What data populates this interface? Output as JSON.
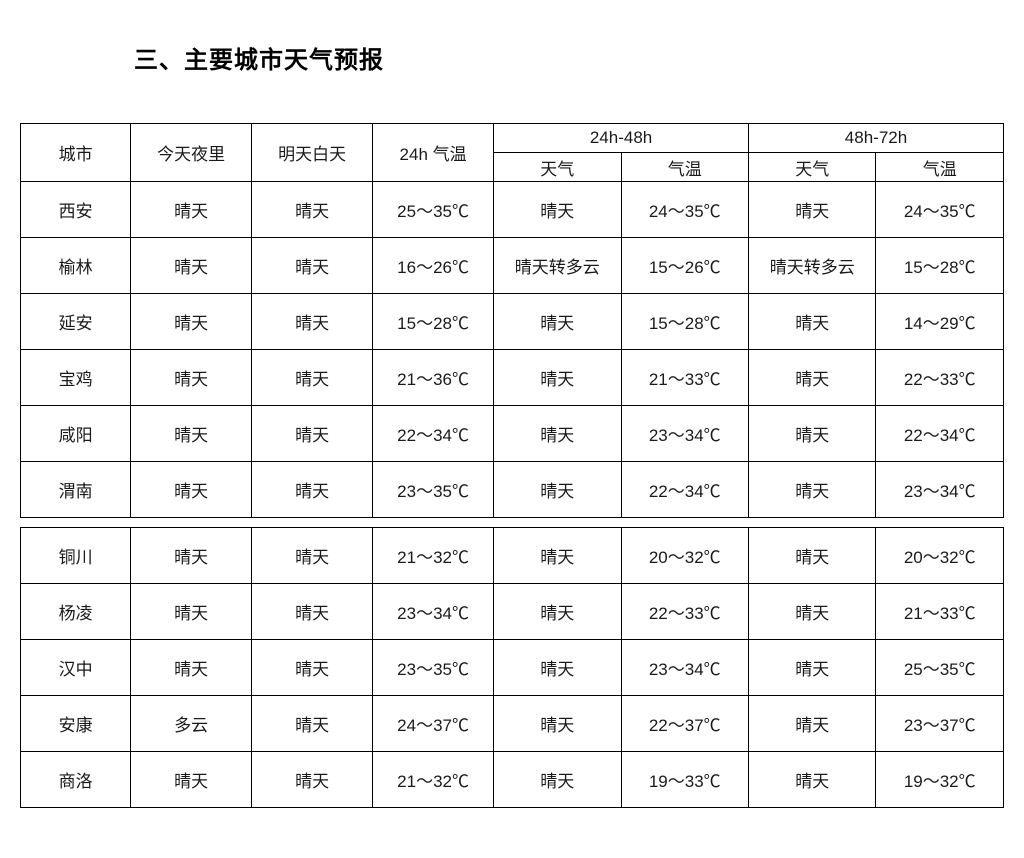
{
  "title": "三、主要城市天气预报",
  "headers": {
    "city": "城市",
    "tonight": "今天夜里",
    "tomorrow": "明天白天",
    "temp24h": "24h 气温",
    "period1": "24h-48h",
    "period2": "48h-72h",
    "weather": "天气",
    "temp": "气温"
  },
  "rows": [
    {
      "city": "西安",
      "tonight": "晴天",
      "tomorrow": "晴天",
      "t24": "25～35℃",
      "w1": "晴天",
      "t1": "24～35℃",
      "w2": "晴天",
      "t2": "24～35℃"
    },
    {
      "city": "榆林",
      "tonight": "晴天",
      "tomorrow": "晴天",
      "t24": "16～26℃",
      "w1": "晴天转多云",
      "t1": "15～26℃",
      "w2": "晴天转多云",
      "t2": "15～28℃"
    },
    {
      "city": "延安",
      "tonight": "晴天",
      "tomorrow": "晴天",
      "t24": "15～28℃",
      "w1": "晴天",
      "t1": "15～28℃",
      "w2": "晴天",
      "t2": "14～29℃"
    },
    {
      "city": "宝鸡",
      "tonight": "晴天",
      "tomorrow": "晴天",
      "t24": "21～36℃",
      "w1": "晴天",
      "t1": "21～33℃",
      "w2": "晴天",
      "t2": "22～33℃"
    },
    {
      "city": "咸阳",
      "tonight": "晴天",
      "tomorrow": "晴天",
      "t24": "22～34℃",
      "w1": "晴天",
      "t1": "23～34℃",
      "w2": "晴天",
      "t2": "22～34℃"
    },
    {
      "city": "渭南",
      "tonight": "晴天",
      "tomorrow": "晴天",
      "t24": "23～35℃",
      "w1": "晴天",
      "t1": "22～34℃",
      "w2": "晴天",
      "t2": "23～34℃"
    }
  ],
  "rows2": [
    {
      "city": "铜川",
      "tonight": "晴天",
      "tomorrow": "晴天",
      "t24": "21～32℃",
      "w1": "晴天",
      "t1": "20～32℃",
      "w2": "晴天",
      "t2": "20～32℃"
    },
    {
      "city": "杨凌",
      "tonight": "晴天",
      "tomorrow": "晴天",
      "t24": "23～34℃",
      "w1": "晴天",
      "t1": "22～33℃",
      "w2": "晴天",
      "t2": "21～33℃"
    },
    {
      "city": "汉中",
      "tonight": "晴天",
      "tomorrow": "晴天",
      "t24": "23～35℃",
      "w1": "晴天",
      "t1": "23～34℃",
      "w2": "晴天",
      "t2": "25～35℃"
    },
    {
      "city": "安康",
      "tonight": "多云",
      "tomorrow": "晴天",
      "t24": "24～37℃",
      "w1": "晴天",
      "t1": "22～37℃",
      "w2": "晴天",
      "t2": "23～37℃"
    },
    {
      "city": "商洛",
      "tonight": "晴天",
      "tomorrow": "晴天",
      "t24": "21～32℃",
      "w1": "晴天",
      "t1": "19～33℃",
      "w2": "晴天",
      "t2": "19～32℃"
    }
  ]
}
